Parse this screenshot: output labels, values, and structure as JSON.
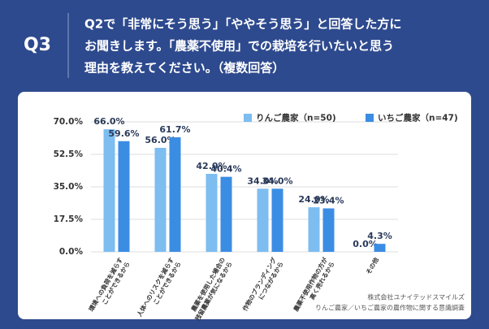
{
  "header": {
    "label": "Q3",
    "question_lines": [
      "Q2で「非常にそう思う」「ややそう思う」と回答した方に",
      "お聞きします。「農薬不使用」での栽培を行いたいと思う",
      "理由を教えてください。（複数回答）"
    ]
  },
  "chart_data": {
    "type": "bar",
    "categories": [
      "環境への負荷を減らす\nことができるから",
      "人体へのリスクを減らす\nことができるから",
      "農薬を使用した場合の\n残留農薬が気になるから",
      "作物のブランディング\nにつながるから",
      "農薬不使用作物の方が\n高く売れるから",
      "その他"
    ],
    "series": [
      {
        "name": "りんご農家（n=50)",
        "color": "#7dbdf0",
        "values": [
          66.0,
          56.0,
          42.0,
          34.0,
          24.0,
          0.0
        ],
        "value_labels": [
          "66.0%",
          "56.0%",
          "42.0%",
          "34.0%",
          "24.0%",
          "0.0%"
        ]
      },
      {
        "name": "いちご農家（n=47)",
        "color": "#3b8de3",
        "values": [
          59.6,
          61.7,
          40.4,
          34.0,
          23.4,
          4.3
        ],
        "value_labels": [
          "59.6%",
          "61.7%",
          "40.4%",
          "34.0%",
          "23.4%",
          "4.3%"
        ]
      }
    ],
    "ylim": [
      0,
      70
    ],
    "yticks": [
      {
        "value": 0,
        "label": "0.0%"
      },
      {
        "value": 17.5,
        "label": "17.5%"
      },
      {
        "value": 35,
        "label": "35.0%"
      },
      {
        "value": 52.5,
        "label": "52.5%"
      },
      {
        "value": 70,
        "label": "70.0%"
      }
    ],
    "grid": true,
    "legend": "top",
    "source_lines": [
      "株式会社ユナイテッドスマイルズ",
      "りんご農家／いちご農家の農作物に関する意識調査"
    ]
  }
}
